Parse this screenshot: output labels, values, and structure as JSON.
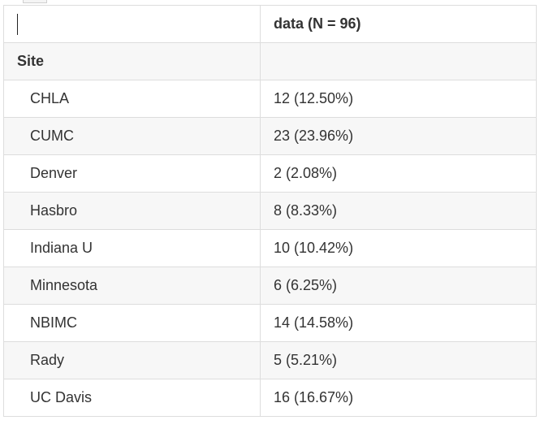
{
  "table": {
    "header": [
      "",
      "data (N = 96)"
    ],
    "section_label": "Site",
    "rows": [
      {
        "label": "CHLA",
        "value": "12 (12.50%)"
      },
      {
        "label": "CUMC",
        "value": "23 (23.96%)"
      },
      {
        "label": "Denver",
        "value": "2 (2.08%)"
      },
      {
        "label": "Hasbro",
        "value": "8 (8.33%)"
      },
      {
        "label": "Indiana U",
        "value": "10 (10.42%)"
      },
      {
        "label": "Minnesota",
        "value": "6 (6.25%)"
      },
      {
        "label": "NBIMC",
        "value": "14 (14.58%)"
      },
      {
        "label": "Rady",
        "value": "5 (5.21%)"
      },
      {
        "label": "UC Davis",
        "value": "16 (16.67%)"
      }
    ]
  }
}
